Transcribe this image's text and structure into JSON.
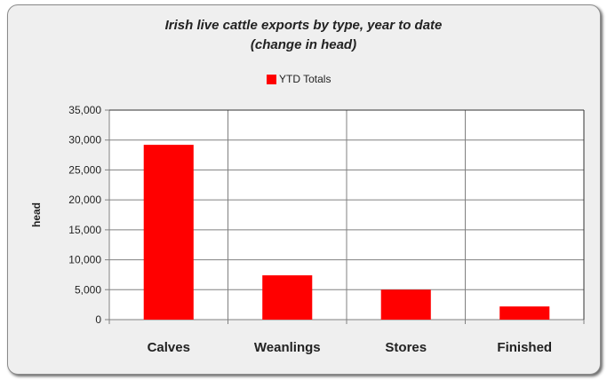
{
  "chart_data": {
    "type": "bar",
    "title": "Irish live cattle exports by type, year to date",
    "subtitle": "(change in head)",
    "xlabel": "",
    "ylabel": "head",
    "categories": [
      "Calves",
      "Weanlings",
      "Stores",
      "Finished"
    ],
    "series": [
      {
        "name": "YTD Totals",
        "values": [
          29200,
          7400,
          5000,
          2200
        ],
        "color": "#ff0000"
      }
    ],
    "ylim": [
      0,
      35000
    ],
    "yticks": [
      0,
      5000,
      10000,
      15000,
      20000,
      25000,
      30000,
      35000
    ],
    "ytick_labels": [
      "0",
      "5,000",
      "10,000",
      "15,000",
      "20,000",
      "25,000",
      "30,000",
      "35,000"
    ],
    "grid": true,
    "legend_position": "top"
  }
}
